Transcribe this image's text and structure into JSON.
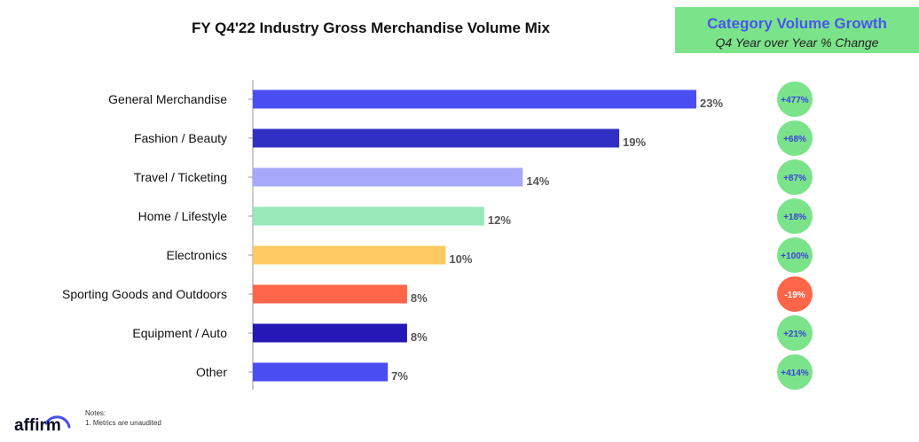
{
  "chart_data": {
    "type": "bar",
    "orientation": "horizontal",
    "title": "FY Q4'22 Industry Gross Merchandise Volume Mix",
    "categories": [
      "General Merchandise",
      "Fashion / Beauty",
      "Travel / Ticketing",
      "Home / Lifestyle",
      "Electronics",
      "Sporting Goods and Outdoors",
      "Equipment / Auto",
      "Other"
    ],
    "values": [
      23,
      19,
      14,
      12,
      10,
      8,
      8,
      7
    ],
    "value_labels": [
      "23%",
      "19%",
      "14%",
      "12%",
      "10%",
      "8%",
      "8%",
      "7%"
    ],
    "bar_colors": [
      "#4a4ef2",
      "#3030c4",
      "#a6a8fb",
      "#98e8b8",
      "#ffca63",
      "#ff6549",
      "#2518b4",
      "#4a4ef2"
    ],
    "growth": {
      "title": "Category Volume Growth",
      "subtitle": "Q4 Year over Year % Change",
      "values": [
        "+477%",
        "+68%",
        "+87%",
        "+18%",
        "+100%",
        "-19%",
        "+21%",
        "+414%"
      ],
      "colors": [
        "#7be38a",
        "#7be38a",
        "#7be38a",
        "#7be38a",
        "#7be38a",
        "#ff6549",
        "#7be38a",
        "#7be38a"
      ]
    },
    "xlim": [
      0,
      23
    ],
    "grid": false,
    "legend": "none"
  },
  "notes": {
    "heading": "Notes:",
    "line1": "1. Metrics are unaudited"
  },
  "logo": {
    "text": "affirm"
  },
  "colors": {
    "growth_box_bg": "#7be38a",
    "growth_title": "#4a55f0"
  }
}
